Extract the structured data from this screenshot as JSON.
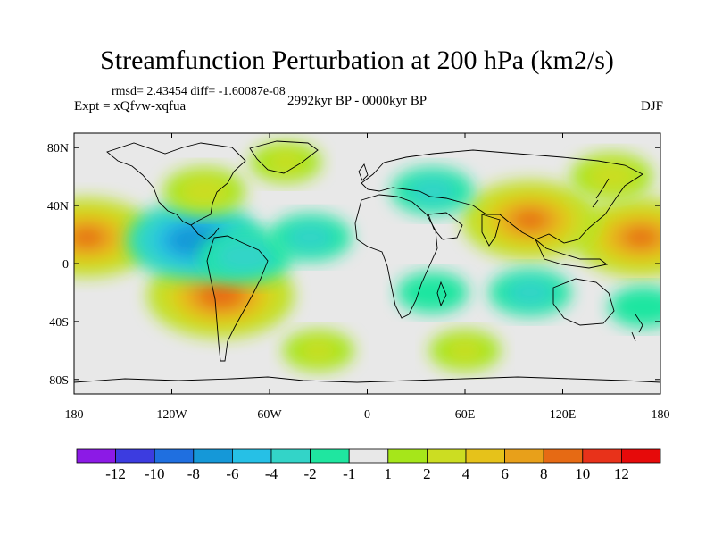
{
  "chart_data": {
    "type": "heatmap",
    "title": "Streamfunction Perturbation at 200 hPa (km2/s)",
    "stats": "rmsd= 2.43454  diff= -1.60087e-08",
    "experiment": "Expt = xQfvw-xqfua",
    "period": "2992kyr BP - 0000kyr BP",
    "season": "DJF",
    "x_ticks": [
      "180",
      "120W",
      "60W",
      "0",
      "60E",
      "120E",
      "180"
    ],
    "y_ticks": [
      "80N",
      "40N",
      "0",
      "40S",
      "80S"
    ],
    "xlim": [
      -180,
      180
    ],
    "ylim": [
      -90,
      90
    ],
    "colorbar": {
      "levels": [
        "-12",
        "-10",
        "-8",
        "-6",
        "-4",
        "-2",
        "-1",
        "1",
        "2",
        "4",
        "6",
        "8",
        "10",
        "12"
      ],
      "colors": [
        "#8c1ae6",
        "#3c3ce0",
        "#1f6fe0",
        "#1598d8",
        "#26c0e6",
        "#33d4c8",
        "#1fe6a0",
        "#e8e8e8",
        "#a6e61a",
        "#ccdd22",
        "#e6c21a",
        "#e8a01a",
        "#e66a14",
        "#e8321a",
        "#e60a0a"
      ]
    },
    "anomalies": [
      {
        "lon": -172,
        "lat": 18,
        "value": 8
      },
      {
        "lon": 168,
        "lat": 18,
        "value": 8
      },
      {
        "lon": 100,
        "lat": 30,
        "value": 8
      },
      {
        "lon": -90,
        "lat": -22,
        "value": 9
      },
      {
        "lon": -106,
        "lat": 16,
        "value": -8
      },
      {
        "lon": -75,
        "lat": 5,
        "value": -4
      },
      {
        "lon": -35,
        "lat": 18,
        "value": -3
      },
      {
        "lon": 40,
        "lat": 50,
        "value": -3
      },
      {
        "lon": 100,
        "lat": -20,
        "value": -3
      },
      {
        "lon": 40,
        "lat": -20,
        "value": -2
      },
      {
        "lon": 170,
        "lat": -30,
        "value": -2
      },
      {
        "lon": -100,
        "lat": 50,
        "value": 3
      },
      {
        "lon": -30,
        "lat": -60,
        "value": 2
      },
      {
        "lon": 150,
        "lat": 60,
        "value": 3
      },
      {
        "lon": -50,
        "lat": 70,
        "value": 2
      },
      {
        "lon": 60,
        "lat": -60,
        "value": 2
      }
    ]
  }
}
